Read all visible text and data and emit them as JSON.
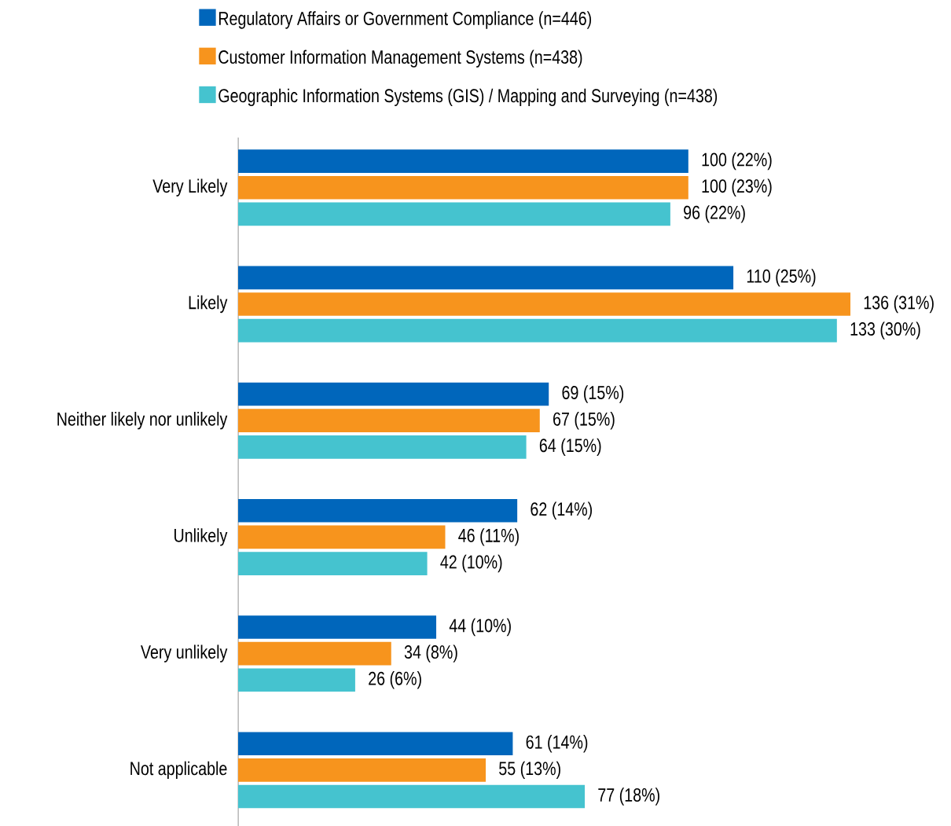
{
  "chart_data": {
    "type": "bar",
    "orientation": "horizontal",
    "legend": "top",
    "categories": [
      "Very Likely",
      "Likely",
      "Neither likely nor unlikely",
      "Unlikely",
      "Very unlikely",
      "Not applicable"
    ],
    "series": [
      {
        "name": "Regulatory Affairs or Government Compliance (n=446)",
        "color": "#0066bb",
        "values": [
          100,
          110,
          69,
          62,
          44,
          61
        ],
        "value_labels": [
          "100 (22%)",
          "110 (25%)",
          "69 (15%)",
          "62 (14%)",
          "44 (10%)",
          "61 (14%)"
        ]
      },
      {
        "name": "Customer Information Management Systems (n=438)",
        "color": "#f7941d",
        "values": [
          100,
          136,
          67,
          46,
          34,
          55
        ],
        "value_labels": [
          "100 (23%)",
          "136 (31%)",
          "67 (15%)",
          "46 (11%)",
          "34 (8%)",
          "55 (13%)"
        ]
      },
      {
        "name": "Geographic Information Systems (GIS) / Mapping and Surveying (n=438)",
        "color": "#45c3cf",
        "values": [
          96,
          133,
          64,
          42,
          26,
          77
        ],
        "value_labels": [
          "96 (22%)",
          "133 (30%)",
          "64 (15%)",
          "42 (10%)",
          "26 (6%)",
          "77 (18%)"
        ]
      }
    ]
  }
}
